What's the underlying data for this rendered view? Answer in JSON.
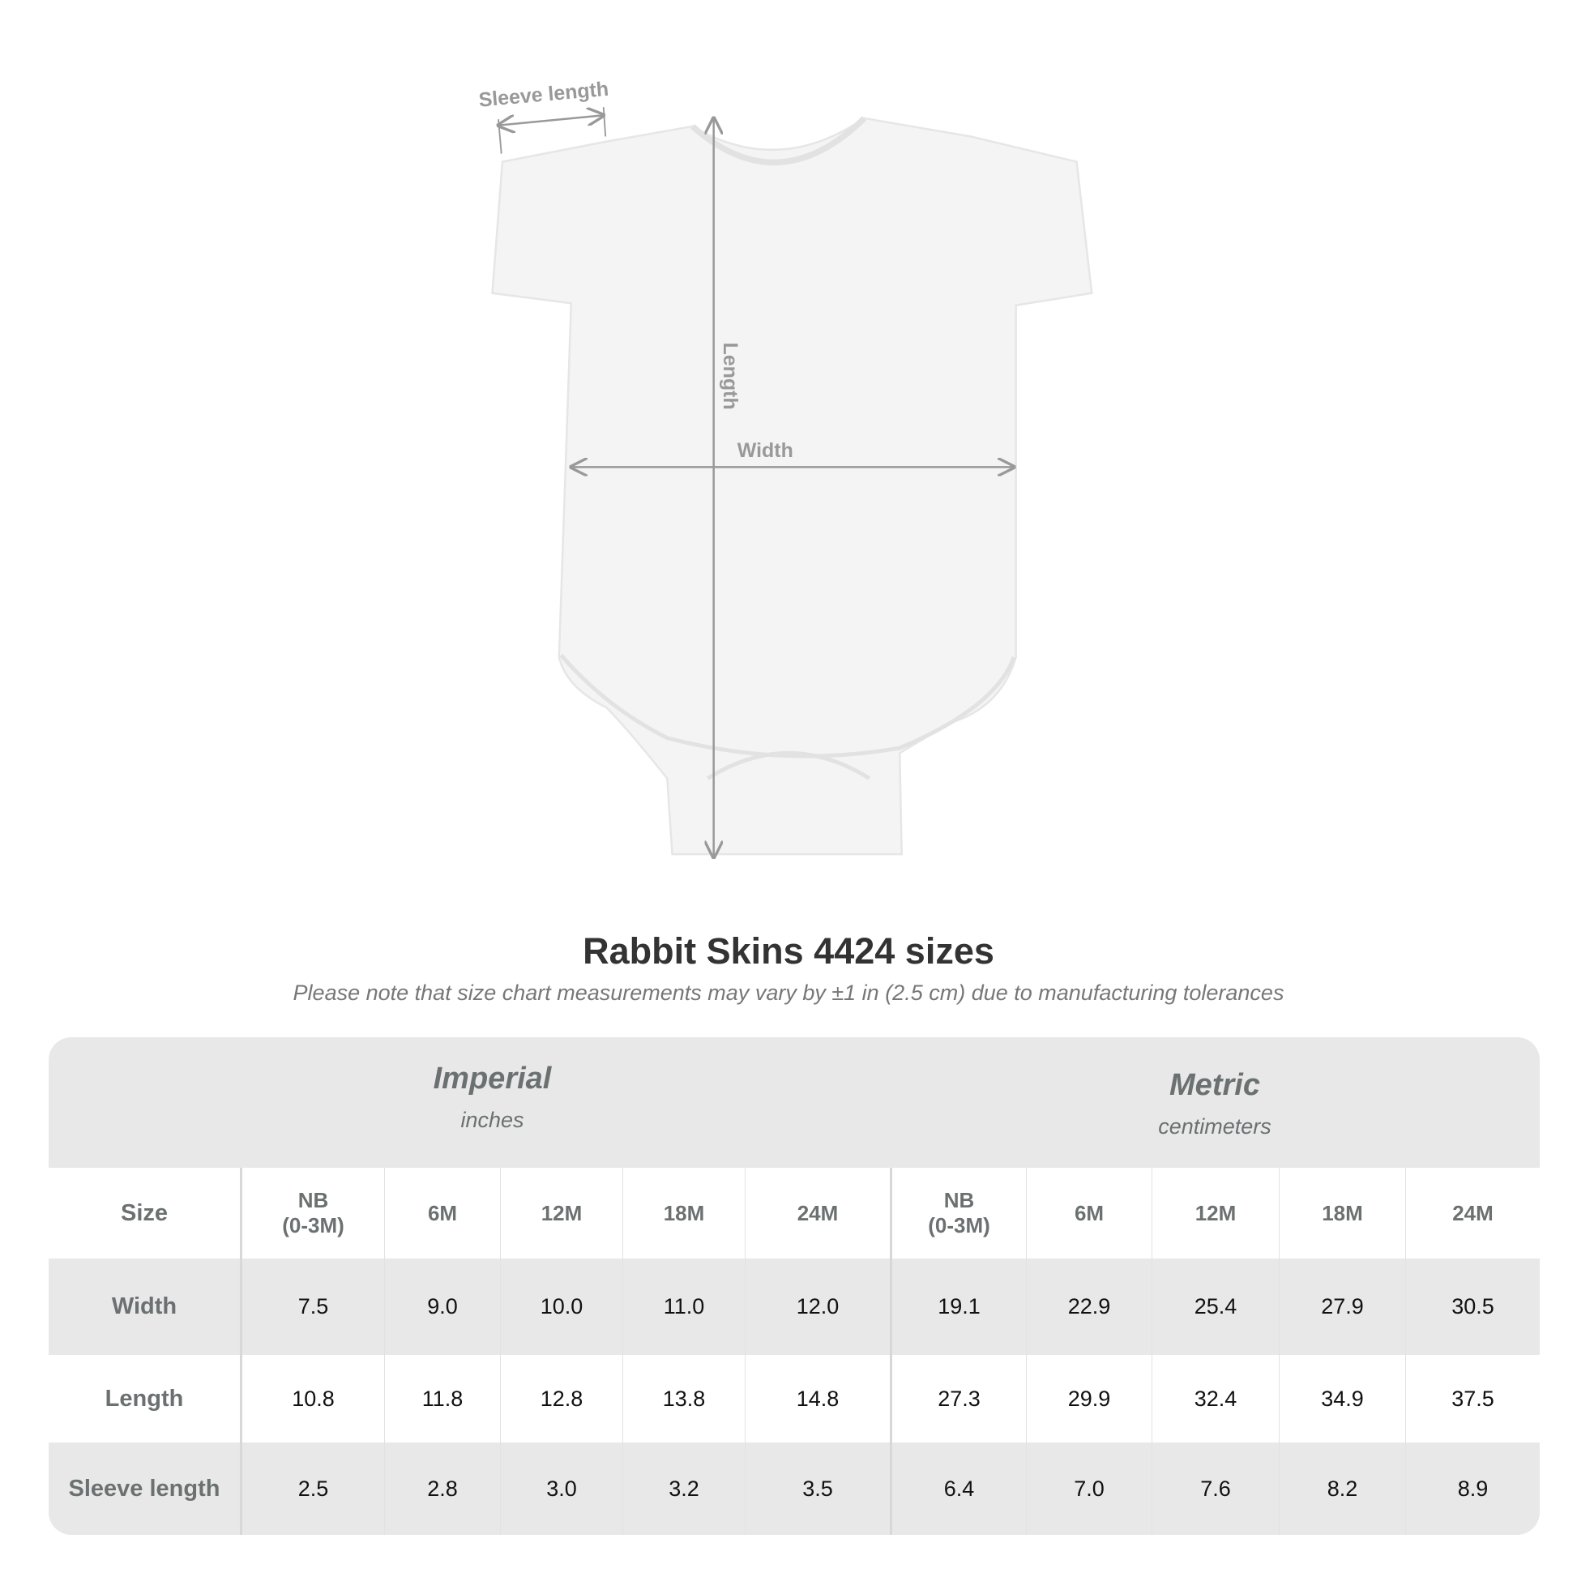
{
  "diagram": {
    "labels": {
      "sleeve": "Sleeve length",
      "length": "Length",
      "width": "Width"
    },
    "garment_color": "#f4f4f4",
    "arrow_color": "#999999"
  },
  "title": "Rabbit Skins 4424 sizes",
  "subtitle": "Please note that size chart measurements may vary by ±1 in (2.5 cm) due to manufacturing tolerances",
  "table": {
    "imperial": {
      "name": "Imperial",
      "unit": "inches"
    },
    "metric": {
      "name": "Metric",
      "unit": "centimeters"
    },
    "size_label": "Size",
    "sizes": [
      "NB\n(0-3M)",
      "6M",
      "12M",
      "18M",
      "24M"
    ],
    "rows": [
      {
        "label": "Width",
        "imperial": [
          "7.5",
          "9.0",
          "10.0",
          "11.0",
          "12.0"
        ],
        "metric": [
          "19.1",
          "22.9",
          "25.4",
          "27.9",
          "30.5"
        ]
      },
      {
        "label": "Length",
        "imperial": [
          "10.8",
          "11.8",
          "12.8",
          "13.8",
          "14.8"
        ],
        "metric": [
          "27.3",
          "29.9",
          "32.4",
          "34.9",
          "37.5"
        ]
      },
      {
        "label": "Sleeve length",
        "imperial": [
          "2.5",
          "2.8",
          "3.0",
          "3.2",
          "3.5"
        ],
        "metric": [
          "6.4",
          "7.0",
          "7.6",
          "8.2",
          "8.9"
        ]
      }
    ]
  }
}
